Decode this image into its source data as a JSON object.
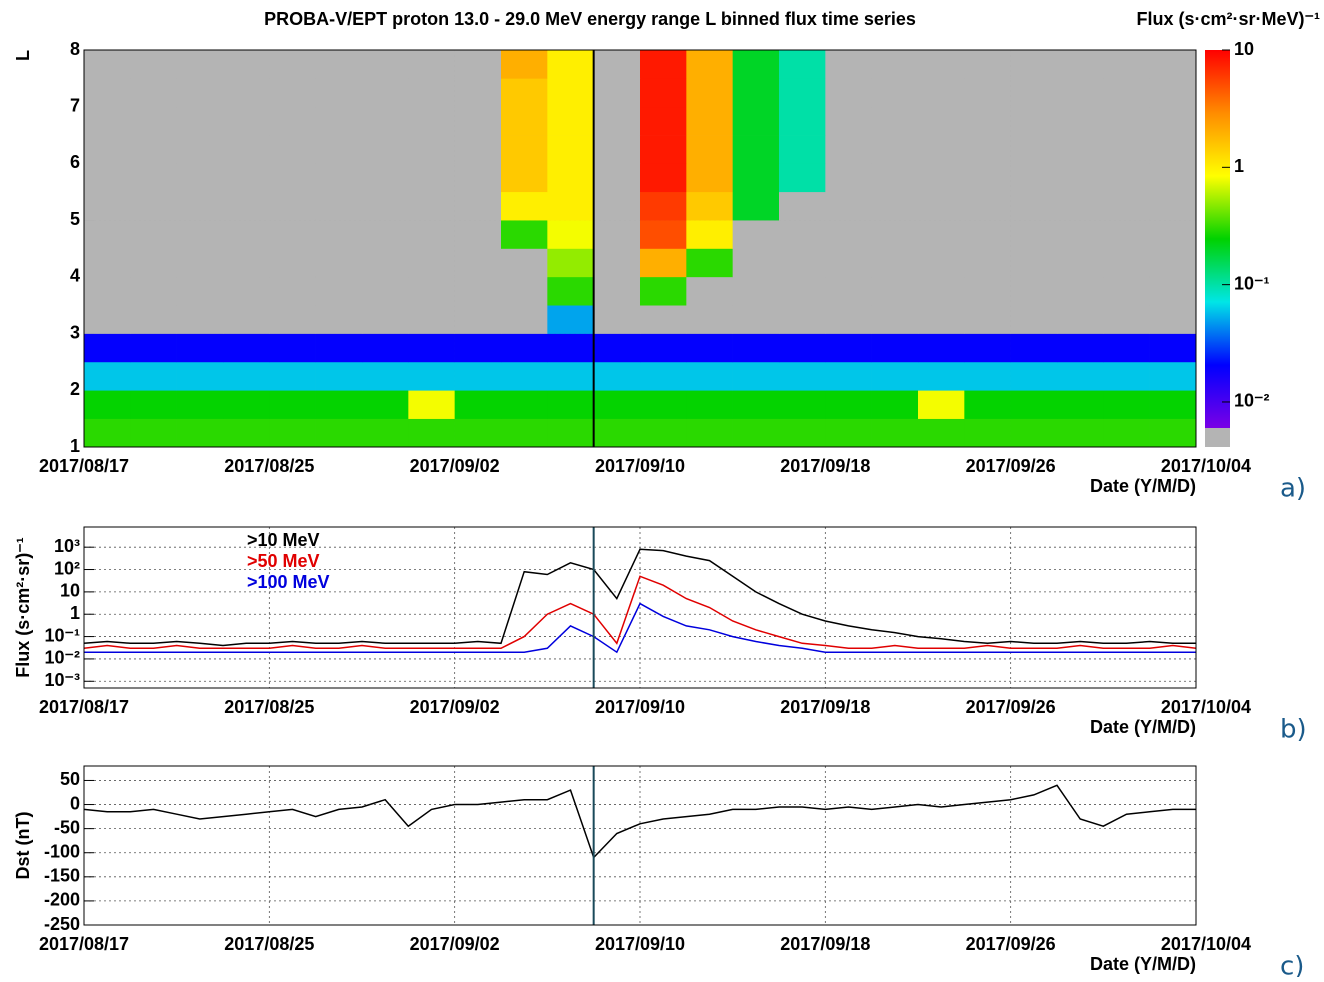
{
  "chart_data": [
    {
      "type": "heatmap",
      "title": "PROBA-V/EPT proton 13.0 - 29.0 MeV energy range L binned flux time series",
      "ylabel": "L",
      "xlabel": "Date (Y/M/D)",
      "panel_label": "a)",
      "xlim": [
        "2017/08/17",
        "2017/10/04"
      ],
      "xticks": [
        "2017/08/17",
        "2017/08/25",
        "2017/09/02",
        "2017/09/10",
        "2017/09/18",
        "2017/09/26",
        "2017/10/04"
      ],
      "ylim": [
        1,
        8
      ],
      "yticks": [
        1,
        2,
        3,
        4,
        5,
        6,
        7,
        8
      ],
      "grid": true,
      "marker_date": "2017/09/08",
      "marker_color": "#000000",
      "null_color": "#b4b4b4",
      "x_bins": [
        "2017/08/17",
        "2017/08/19",
        "2017/08/21",
        "2017/08/23",
        "2017/08/25",
        "2017/08/27",
        "2017/08/29",
        "2017/08/31",
        "2017/09/02",
        "2017/09/04",
        "2017/09/06",
        "2017/09/08",
        "2017/09/10",
        "2017/09/12",
        "2017/09/14",
        "2017/09/16",
        "2017/09/18",
        "2017/09/20",
        "2017/09/22",
        "2017/09/24",
        "2017/09/26",
        "2017/09/28",
        "2017/09/30",
        "2017/10/02",
        "2017/10/04"
      ],
      "y_bins": [
        1,
        1.5,
        2,
        2.5,
        3,
        3.5,
        4,
        4.5,
        5,
        5.5,
        6,
        6.5,
        7,
        7.5,
        8
      ],
      "values": [
        [
          0.3,
          0.3,
          0.3,
          0.3,
          0.3,
          0.3,
          0.3,
          0.3,
          0.3,
          0.3,
          0.3,
          0.3,
          0.3,
          0.3,
          0.3,
          0.3,
          0.3,
          0.3,
          0.3,
          0.3,
          0.3,
          0.3,
          0.3,
          0.3
        ],
        [
          0.25,
          0.25,
          0.25,
          0.25,
          0.25,
          0.25,
          0.25,
          0.8,
          0.25,
          0.25,
          0.25,
          0.25,
          0.25,
          0.25,
          0.25,
          0.25,
          0.25,
          0.25,
          0.8,
          0.25,
          0.25,
          0.25,
          0.25,
          0.25
        ],
        [
          0.06,
          0.06,
          0.06,
          0.06,
          0.06,
          0.06,
          0.06,
          0.06,
          0.06,
          0.06,
          0.06,
          0.06,
          0.06,
          0.06,
          0.06,
          0.06,
          0.06,
          0.06,
          0.06,
          0.06,
          0.06,
          0.06,
          0.06,
          0.06
        ],
        [
          0.02,
          0.02,
          0.02,
          0.02,
          0.02,
          0.02,
          0.02,
          0.02,
          0.02,
          0.02,
          0.02,
          0.02,
          0.02,
          0.02,
          0.02,
          0.02,
          0.02,
          0.02,
          0.02,
          0.02,
          0.02,
          0.02,
          0.02,
          0.02
        ],
        [
          null,
          null,
          null,
          null,
          null,
          null,
          null,
          null,
          null,
          null,
          0.05,
          null,
          null,
          null,
          null,
          null,
          null,
          null,
          null,
          null,
          null,
          null,
          null,
          null
        ],
        [
          null,
          null,
          null,
          null,
          null,
          null,
          null,
          null,
          null,
          null,
          0.3,
          null,
          0.3,
          null,
          null,
          null,
          null,
          null,
          null,
          null,
          null,
          null,
          null,
          null
        ],
        [
          null,
          null,
          null,
          null,
          null,
          null,
          null,
          null,
          null,
          null,
          0.5,
          null,
          2,
          0.3,
          null,
          null,
          null,
          null,
          null,
          null,
          null,
          null,
          null,
          null
        ],
        [
          null,
          null,
          null,
          null,
          null,
          null,
          null,
          null,
          null,
          0.3,
          0.8,
          null,
          5,
          1,
          null,
          null,
          null,
          null,
          null,
          null,
          null,
          null,
          null,
          null
        ],
        [
          null,
          null,
          null,
          null,
          null,
          null,
          null,
          null,
          null,
          1,
          1,
          null,
          6,
          1.5,
          0.2,
          null,
          null,
          null,
          null,
          null,
          null,
          null,
          null,
          null
        ],
        [
          null,
          null,
          null,
          null,
          null,
          null,
          null,
          null,
          null,
          1.5,
          1,
          null,
          8,
          2,
          0.2,
          0.1,
          null,
          null,
          null,
          null,
          null,
          null,
          null,
          null
        ],
        [
          null,
          null,
          null,
          null,
          null,
          null,
          null,
          null,
          null,
          1.5,
          1,
          null,
          8,
          2,
          0.2,
          0.1,
          null,
          null,
          null,
          null,
          null,
          null,
          null,
          null
        ],
        [
          null,
          null,
          null,
          null,
          null,
          null,
          null,
          null,
          null,
          1.5,
          1,
          null,
          8,
          2,
          0.2,
          0.1,
          null,
          null,
          null,
          null,
          null,
          null,
          null,
          null
        ],
        [
          null,
          null,
          null,
          null,
          null,
          null,
          null,
          null,
          null,
          1.5,
          1,
          null,
          8,
          2,
          0.2,
          0.1,
          null,
          null,
          null,
          null,
          null,
          null,
          null,
          null
        ],
        [
          null,
          null,
          null,
          null,
          null,
          null,
          null,
          null,
          null,
          2,
          1,
          null,
          8,
          2,
          0.2,
          0.1,
          null,
          null,
          null,
          null,
          null,
          null,
          null,
          null
        ]
      ],
      "colorbar": {
        "title": "Flux (s·cm²·sr·MeV)⁻¹",
        "zlim": [
          0.006,
          10
        ],
        "zticks": [
          {
            "value": 0.01,
            "label": "10⁻²"
          },
          {
            "value": 0.1,
            "label": "10⁻¹"
          },
          1,
          10
        ],
        "colormap": [
          "#7a00e6",
          "#0000ff",
          "#00e6e6",
          "#00d200",
          "#ffff00",
          "#ff8c00",
          "#ff0000"
        ]
      }
    },
    {
      "type": "line",
      "log_y": true,
      "ylabel": "Flux (s·cm²·sr)⁻¹",
      "xlabel": "Date (Y/M/D)",
      "panel_label": "b)",
      "xlim": [
        "2017/08/17",
        "2017/10/04"
      ],
      "xticks": [
        "2017/08/17",
        "2017/08/25",
        "2017/09/02",
        "2017/09/10",
        "2017/09/18",
        "2017/09/26",
        "2017/10/04"
      ],
      "ylim": [
        0.0005,
        8000
      ],
      "yticks": [
        {
          "value": 0.001,
          "label": "10⁻³"
        },
        {
          "value": 0.01,
          "label": "10⁻²"
        },
        {
          "value": 0.1,
          "label": "10⁻¹"
        },
        1,
        10,
        {
          "value": 100,
          "label": "10²"
        },
        {
          "value": 1000,
          "label": "10³"
        }
      ],
      "grid": true,
      "marker_date": "2017/09/08",
      "marker_color": "#1a4a5a",
      "x": [
        "2017/08/17",
        "2017/08/18",
        "2017/08/19",
        "2017/08/20",
        "2017/08/21",
        "2017/08/22",
        "2017/08/23",
        "2017/08/24",
        "2017/08/25",
        "2017/08/26",
        "2017/08/27",
        "2017/08/28",
        "2017/08/29",
        "2017/08/30",
        "2017/08/31",
        "2017/09/01",
        "2017/09/02",
        "2017/09/03",
        "2017/09/04",
        "2017/09/05",
        "2017/09/06",
        "2017/09/07",
        "2017/09/08",
        "2017/09/09",
        "2017/09/10",
        "2017/09/11",
        "2017/09/12",
        "2017/09/13",
        "2017/09/14",
        "2017/09/15",
        "2017/09/16",
        "2017/09/17",
        "2017/09/18",
        "2017/09/19",
        "2017/09/20",
        "2017/09/21",
        "2017/09/22",
        "2017/09/23",
        "2017/09/24",
        "2017/09/25",
        "2017/09/26",
        "2017/09/27",
        "2017/09/28",
        "2017/09/29",
        "2017/09/30",
        "2017/10/01",
        "2017/10/02",
        "2017/10/03",
        "2017/10/04"
      ],
      "series": [
        {
          "name": ">10 MeV",
          "color": "#000000",
          "values": [
            0.05,
            0.06,
            0.05,
            0.05,
            0.06,
            0.05,
            0.04,
            0.05,
            0.05,
            0.06,
            0.05,
            0.05,
            0.06,
            0.05,
            0.05,
            0.05,
            0.05,
            0.06,
            0.05,
            80,
            60,
            200,
            100,
            5,
            800,
            700,
            400,
            250,
            50,
            10,
            3,
            1,
            0.5,
            0.3,
            0.2,
            0.15,
            0.1,
            0.08,
            0.06,
            0.05,
            0.06,
            0.05,
            0.05,
            0.06,
            0.05,
            0.05,
            0.06,
            0.05,
            0.05
          ]
        },
        {
          "name": ">50 MeV",
          "color": "#e00000",
          "values": [
            0.03,
            0.04,
            0.03,
            0.03,
            0.04,
            0.03,
            0.03,
            0.03,
            0.03,
            0.04,
            0.03,
            0.03,
            0.04,
            0.03,
            0.03,
            0.03,
            0.03,
            0.03,
            0.03,
            0.1,
            1,
            3,
            1,
            0.05,
            50,
            20,
            5,
            2,
            0.5,
            0.2,
            0.1,
            0.05,
            0.04,
            0.03,
            0.03,
            0.04,
            0.03,
            0.03,
            0.03,
            0.04,
            0.03,
            0.03,
            0.03,
            0.04,
            0.03,
            0.03,
            0.03,
            0.04,
            0.03
          ]
        },
        {
          "name": ">100 MeV",
          "color": "#0000dd",
          "values": [
            0.02,
            0.02,
            0.02,
            0.02,
            0.02,
            0.02,
            0.02,
            0.02,
            0.02,
            0.02,
            0.02,
            0.02,
            0.02,
            0.02,
            0.02,
            0.02,
            0.02,
            0.02,
            0.02,
            0.02,
            0.03,
            0.3,
            0.1,
            0.02,
            3,
            0.8,
            0.3,
            0.2,
            0.1,
            0.06,
            0.04,
            0.03,
            0.02,
            0.02,
            0.02,
            0.02,
            0.02,
            0.02,
            0.02,
            0.02,
            0.02,
            0.02,
            0.02,
            0.02,
            0.02,
            0.02,
            0.02,
            0.02,
            0.02
          ]
        }
      ]
    },
    {
      "type": "line",
      "ylabel": "Dst (nT)",
      "xlabel": "Date (Y/M/D)",
      "panel_label": "c)",
      "xlim": [
        "2017/08/17",
        "2017/10/04"
      ],
      "xticks": [
        "2017/08/17",
        "2017/08/25",
        "2017/09/02",
        "2017/09/10",
        "2017/09/18",
        "2017/09/26",
        "2017/10/04"
      ],
      "ylim": [
        -250,
        80
      ],
      "yticks": [
        50,
        0,
        -50,
        -100,
        -150,
        -200,
        -250
      ],
      "grid": true,
      "marker_date": "2017/09/08",
      "marker_color": "#1a4a5a",
      "x": [
        "2017/08/17",
        "2017/08/18",
        "2017/08/19",
        "2017/08/20",
        "2017/08/21",
        "2017/08/22",
        "2017/08/23",
        "2017/08/24",
        "2017/08/25",
        "2017/08/26",
        "2017/08/27",
        "2017/08/28",
        "2017/08/29",
        "2017/08/30",
        "2017/08/31",
        "2017/09/01",
        "2017/09/02",
        "2017/09/03",
        "2017/09/04",
        "2017/09/05",
        "2017/09/06",
        "2017/09/07",
        "2017/09/08",
        "2017/09/09",
        "2017/09/10",
        "2017/09/11",
        "2017/09/12",
        "2017/09/13",
        "2017/09/14",
        "2017/09/15",
        "2017/09/16",
        "2017/09/17",
        "2017/09/18",
        "2017/09/19",
        "2017/09/20",
        "2017/09/21",
        "2017/09/22",
        "2017/09/23",
        "2017/09/24",
        "2017/09/25",
        "2017/09/26",
        "2017/09/27",
        "2017/09/28",
        "2017/09/29",
        "2017/09/30",
        "2017/10/01",
        "2017/10/02",
        "2017/10/03",
        "2017/10/04"
      ],
      "values": [
        -10,
        -15,
        -15,
        -10,
        -20,
        -30,
        -25,
        -20,
        -15,
        -10,
        -25,
        -10,
        -5,
        10,
        -45,
        -10,
        0,
        0,
        5,
        10,
        10,
        30,
        -110,
        -60,
        -40,
        -30,
        -25,
        -20,
        -10,
        -10,
        -5,
        -5,
        -10,
        -5,
        -10,
        -5,
        0,
        -5,
        0,
        5,
        10,
        20,
        40,
        -30,
        -45,
        -20,
        -15,
        -10,
        -10
      ],
      "color": "#000000"
    }
  ]
}
